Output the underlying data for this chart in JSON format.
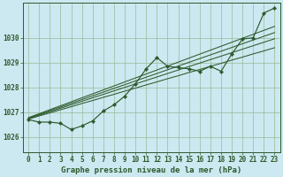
{
  "title": "Graphe pression niveau de la mer (hPa)",
  "bg_color": "#cce8f0",
  "grid_color": "#99bb99",
  "line_color": "#2d5a2d",
  "xlim": [
    -0.5,
    23.5
  ],
  "ylim": [
    1025.4,
    1031.4
  ],
  "yticks": [
    1026,
    1027,
    1028,
    1029,
    1030
  ],
  "xticks": [
    0,
    1,
    2,
    3,
    4,
    5,
    6,
    7,
    8,
    9,
    10,
    11,
    12,
    13,
    14,
    15,
    16,
    17,
    18,
    19,
    20,
    21,
    22,
    23
  ],
  "main_line": [
    1026.7,
    1026.6,
    1026.6,
    1026.55,
    1026.3,
    1026.45,
    1026.65,
    1027.05,
    1027.3,
    1027.65,
    1028.15,
    1028.75,
    1029.2,
    1028.85,
    1028.8,
    1028.75,
    1028.65,
    1028.85,
    1028.65,
    1029.35,
    1029.95,
    1030.0,
    1031.0,
    1031.2
  ],
  "linear_line1": [
    1026.72,
    1026.85,
    1026.97,
    1027.1,
    1027.22,
    1027.35,
    1027.47,
    1027.6,
    1027.72,
    1027.85,
    1027.97,
    1028.1,
    1028.22,
    1028.35,
    1028.47,
    1028.6,
    1028.72,
    1028.85,
    1028.97,
    1029.1,
    1029.22,
    1029.35,
    1029.47,
    1029.6
  ],
  "linear_line2": [
    1026.74,
    1026.88,
    1027.02,
    1027.16,
    1027.3,
    1027.44,
    1027.58,
    1027.72,
    1027.86,
    1028.0,
    1028.14,
    1028.28,
    1028.42,
    1028.56,
    1028.7,
    1028.84,
    1028.98,
    1029.12,
    1029.26,
    1029.4,
    1029.54,
    1029.68,
    1029.82,
    1029.96
  ],
  "linear_line3": [
    1026.76,
    1026.91,
    1027.06,
    1027.21,
    1027.36,
    1027.51,
    1027.66,
    1027.81,
    1027.96,
    1028.11,
    1028.26,
    1028.41,
    1028.56,
    1028.71,
    1028.86,
    1029.01,
    1029.16,
    1029.31,
    1029.46,
    1029.61,
    1029.76,
    1029.91,
    1030.06,
    1030.21
  ],
  "linear_line4": [
    1026.78,
    1026.94,
    1027.1,
    1027.26,
    1027.42,
    1027.58,
    1027.74,
    1027.9,
    1028.06,
    1028.22,
    1028.38,
    1028.54,
    1028.7,
    1028.86,
    1029.02,
    1029.18,
    1029.34,
    1029.5,
    1029.66,
    1029.82,
    1029.98,
    1030.14,
    1030.3,
    1030.46
  ],
  "tick_fontsize": 5.5,
  "title_fontsize": 6.5
}
